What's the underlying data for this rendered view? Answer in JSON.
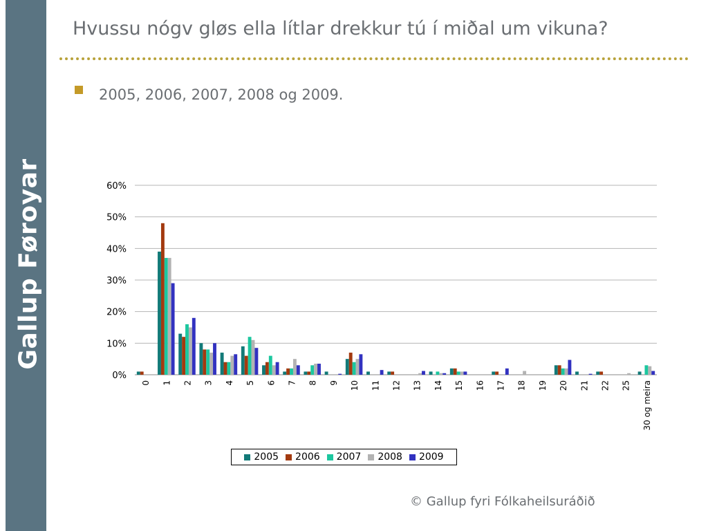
{
  "slide": {
    "sidebar_text": "Gallup Føroyar",
    "title": "Hvussu nógv gløs ella lítlar drekkur tú í miðal um vikuna?",
    "subtitle": "2005, 2006, 2007, 2008 og 2009.",
    "copyright": "© Gallup fyri Fólkaheilsuráðið"
  },
  "colors": {
    "sidebar": "#5a7482",
    "divider": "#b8a23a",
    "bullet": "#c49a28",
    "text": "#6a6e72"
  },
  "chart_data": {
    "type": "bar",
    "title": "",
    "xlabel": "",
    "ylabel": "",
    "ylim": [
      0,
      60
    ],
    "y_ticks": [
      "0%",
      "10%",
      "20%",
      "30%",
      "40%",
      "50%",
      "60%"
    ],
    "grid": true,
    "legend_position": "bottom",
    "categories": [
      "0",
      "1",
      "2",
      "3",
      "4",
      "5",
      "6",
      "7",
      "8",
      "9",
      "10",
      "11",
      "12",
      "13",
      "14",
      "15",
      "16",
      "17",
      "18",
      "19",
      "20",
      "21",
      "22",
      "25",
      "30 og meira"
    ],
    "series": [
      {
        "name": "2005",
        "color": "#127a78",
        "values": [
          1,
          39,
          13,
          10,
          7,
          9,
          3,
          1,
          1,
          1,
          5,
          1,
          1,
          0,
          1,
          2,
          0,
          1,
          0,
          0,
          3,
          1,
          1,
          0,
          1
        ]
      },
      {
        "name": "2006",
        "color": "#a33a0f",
        "values": [
          1,
          48,
          12,
          8,
          4,
          6,
          4,
          2,
          1,
          0,
          7,
          0,
          1,
          0,
          0,
          2,
          0,
          1,
          0,
          0,
          3,
          0,
          1,
          0,
          0
        ]
      },
      {
        "name": "2007",
        "color": "#1cc79f",
        "values": [
          0,
          37,
          16,
          8,
          4,
          12,
          6,
          2,
          3,
          0,
          4,
          0,
          0,
          0,
          1,
          1,
          0,
          0,
          0,
          0,
          2,
          0,
          0,
          0,
          3
        ]
      },
      {
        "name": "2008",
        "color": "#b3b3b3",
        "values": [
          0,
          37,
          15,
          7,
          6,
          11,
          3,
          5,
          3.5,
          0,
          5,
          0,
          0,
          0.5,
          0.5,
          1,
          0,
          0,
          1.2,
          0,
          2,
          0,
          0,
          0.5,
          2.7
        ]
      },
      {
        "name": "2009",
        "color": "#3232c0",
        "values": [
          0,
          29,
          18,
          10,
          6.5,
          8.5,
          4,
          3,
          3.5,
          0.3,
          6.5,
          1.5,
          0,
          1.2,
          0.5,
          1,
          0,
          2,
          0,
          0,
          4.7,
          0.3,
          0,
          0,
          1.2
        ]
      }
    ]
  }
}
